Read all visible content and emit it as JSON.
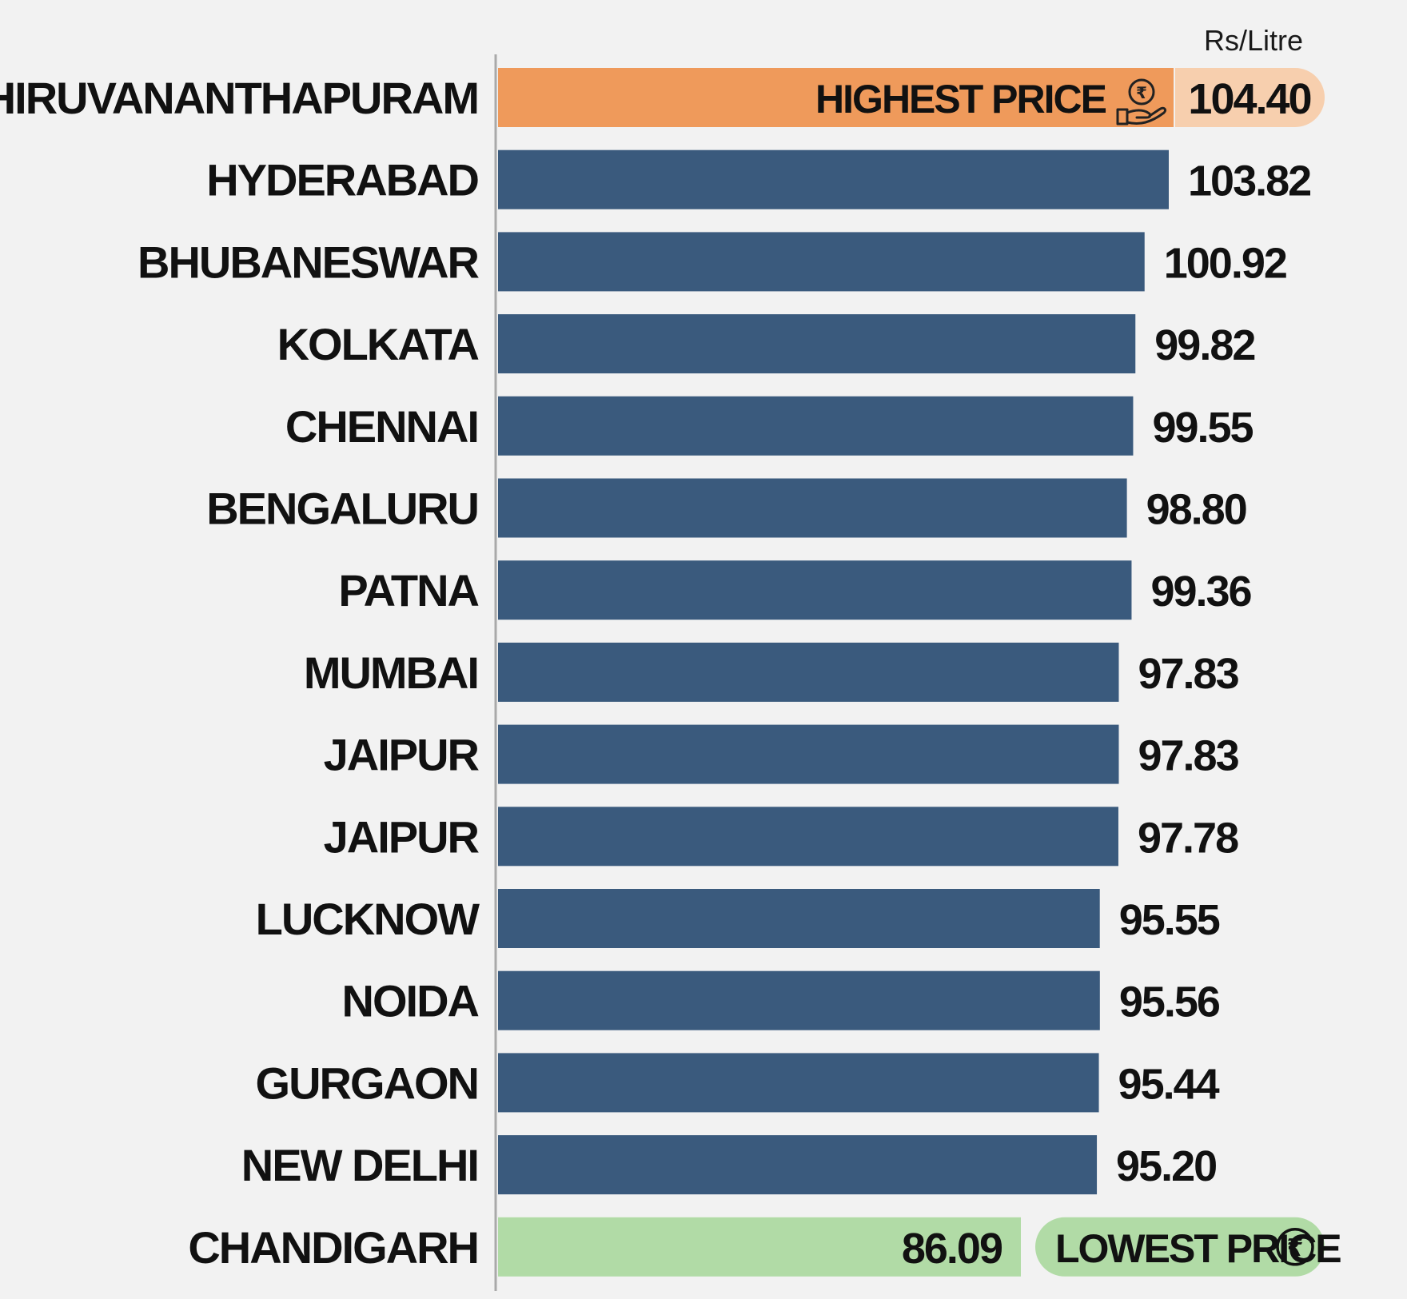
{
  "unit_label": "Rs/Litre",
  "highest_tag": "HIGHEST PRICE",
  "lowest_tag": "LOWEST PRICE",
  "colors": {
    "default_bar": "#3a5a7d",
    "highest_bar": "#ef9a5b",
    "highest_value_pill": "#f7cfae",
    "lowest_bar": "#b1dba6",
    "lowest_tag_pill": "#b1dba6",
    "axis": "#a9a9a9",
    "background": "#f2f2f2"
  },
  "icons": {
    "highest": "hand-with-rupee-coin-icon",
    "lowest": "rupee-coin-icon"
  },
  "chart_data": {
    "type": "bar",
    "orientation": "horizontal",
    "title": "",
    "xlabel": "",
    "ylabel": "",
    "unit": "Rs/Litre",
    "categories": [
      "THIRUVANANTHAPURAM",
      "HYDERABAD",
      "BHUBANESWAR",
      "KOLKATA",
      "CHENNAI",
      "BENGALURU",
      "PATNA",
      "MUMBAI",
      "JAIPUR",
      "JAIPUR",
      "LUCKNOW",
      "NOIDA",
      "GURGAON",
      "NEW DELHI",
      "CHANDIGARH"
    ],
    "values": [
      104.4,
      103.82,
      100.92,
      99.82,
      99.55,
      98.8,
      99.36,
      97.83,
      97.83,
      97.78,
      95.55,
      95.56,
      95.44,
      95.2,
      86.09
    ],
    "value_labels": [
      "104.40",
      "103.82",
      "100.92",
      "99.82",
      "99.55",
      "98.80",
      "99.36",
      "97.83",
      "97.83",
      "97.78",
      "95.55",
      "95.56",
      "95.44",
      "95.20",
      "86.09"
    ],
    "highlight": {
      "highest_index": 0,
      "lowest_index": 14
    },
    "grid": false,
    "legend": "none"
  }
}
